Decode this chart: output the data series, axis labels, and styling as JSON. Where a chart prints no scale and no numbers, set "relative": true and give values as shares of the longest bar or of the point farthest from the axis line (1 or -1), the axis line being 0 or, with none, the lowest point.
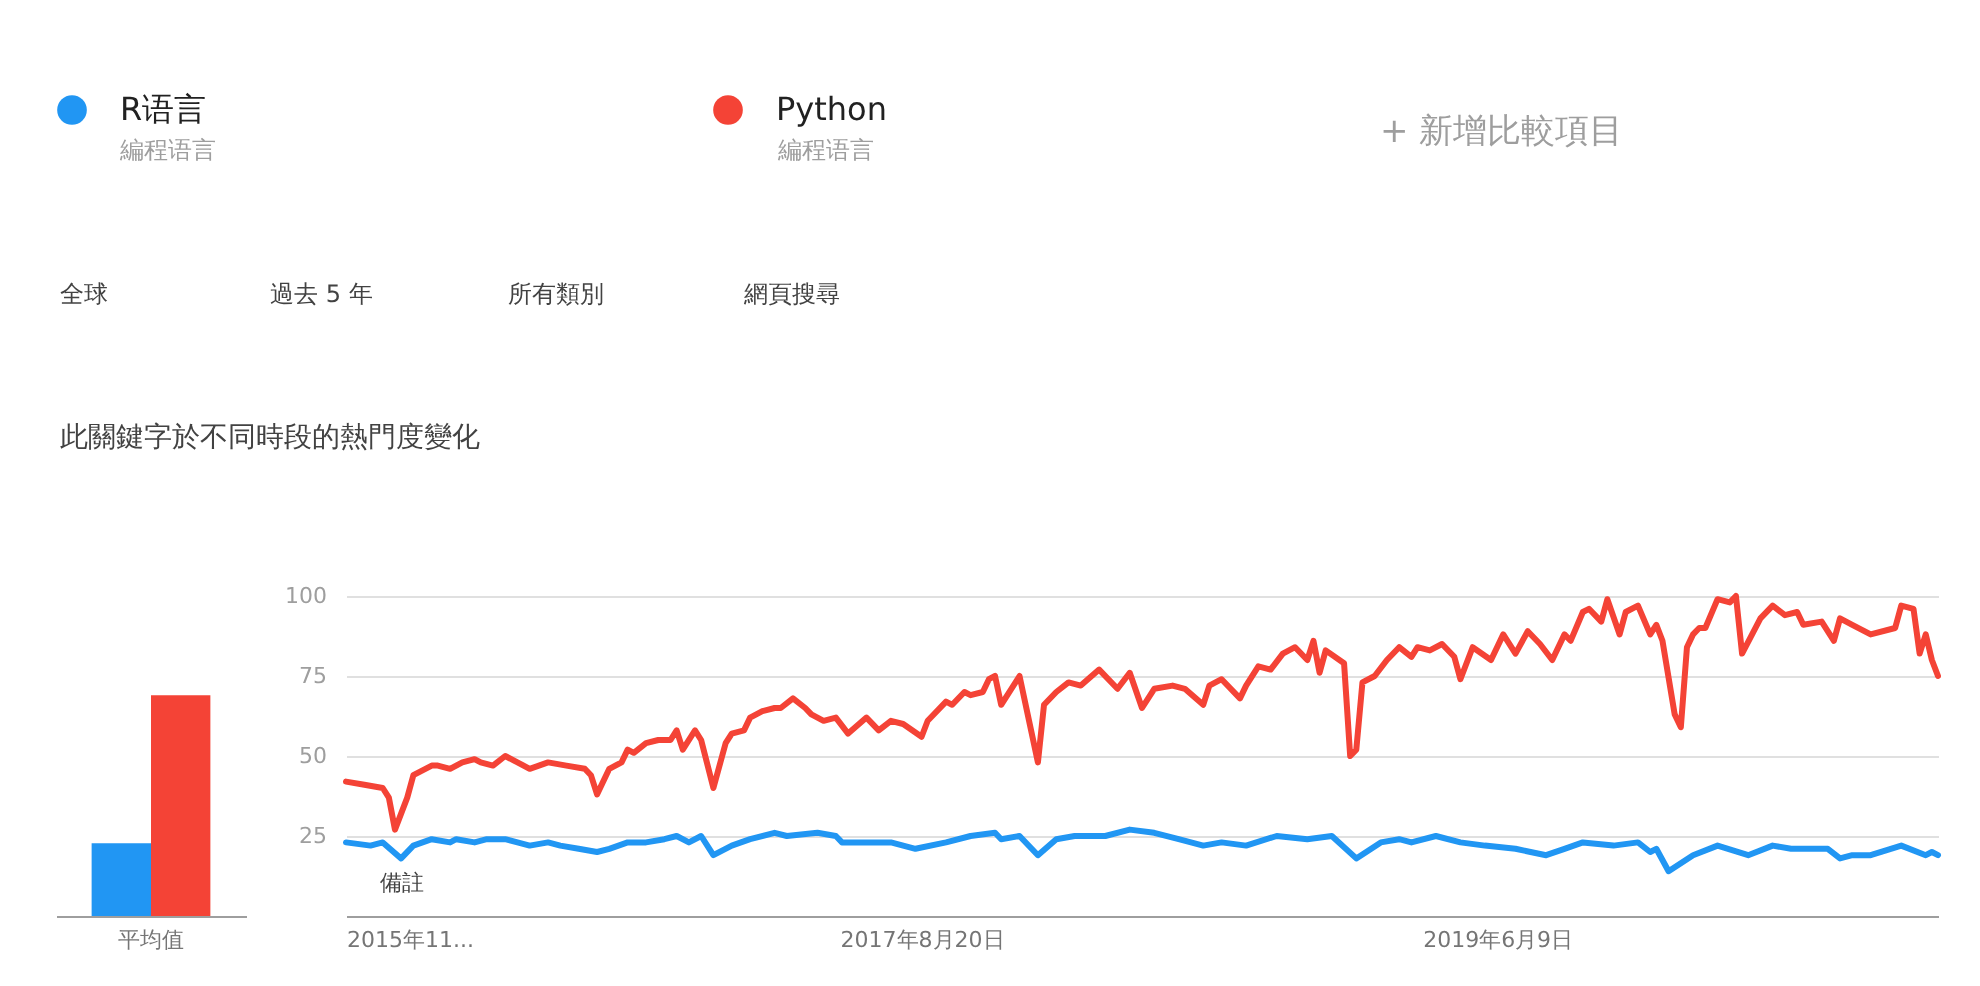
{
  "chart_data": [
    {
      "type": "bar",
      "relative": true,
      "categories": [
        "平均值"
      ],
      "series": [
        {
          "color": "#2196f3",
          "values": [
            0.33
          ]
        },
        {
          "color": "#f44336",
          "values": [
            1
          ]
        }
      ]
    },
    {
      "type": "line",
      "title": "此關鍵字於不同時段的熱門度變化",
      "legend": "top left",
      "grid": "y",
      "marker": "none",
      "line_style": "solid",
      "xlim": [
        "2015-11-01",
        "2020-10-25"
      ],
      "xticks": [
        {
          "value": "2015-11-01",
          "label": "2015年11..."
        },
        {
          "value": "2017-08-20",
          "label": "2017年8月20日"
        },
        {
          "value": "2019-06-09",
          "label": "2019年6月9日"
        }
      ],
      "ylim": [
        0,
        100
      ],
      "yticks": [
        25,
        50,
        75,
        100
      ],
      "annotations": [
        "編程语言",
        "編程语言",
        "+ 新增比較項目",
        "全球",
        "過去 5 年",
        "所有類別",
        "網頁搜尋",
        "備註"
      ],
      "series": [
        {
          "name": "R语言",
          "color": "#2196f3",
          "x": [
            "2015-11-01",
            "2015-11-29",
            "2015-12-13",
            "2016-01-03",
            "2016-01-17",
            "2016-02-07",
            "2016-02-28",
            "2016-03-06",
            "2016-03-27",
            "2016-04-10",
            "2016-05-01",
            "2016-05-15",
            "2016-05-29",
            "2016-06-19",
            "2016-07-03",
            "2016-07-24",
            "2016-08-14",
            "2016-08-28",
            "2016-09-18",
            "2016-10-09",
            "2016-10-30",
            "2016-11-13",
            "2016-11-27",
            "2016-12-11",
            "2016-12-25",
            "2017-01-15",
            "2017-02-05",
            "2017-03-05",
            "2017-03-19",
            "2017-04-23",
            "2017-05-14",
            "2017-05-21",
            "2017-07-16",
            "2017-08-13",
            "2017-09-17",
            "2017-10-15",
            "2017-11-12",
            "2017-11-19",
            "2017-12-10",
            "2017-12-31",
            "2018-01-21",
            "2018-02-11",
            "2018-03-18",
            "2018-04-15",
            "2018-05-13",
            "2018-06-10",
            "2018-07-08",
            "2018-07-29",
            "2018-08-26",
            "2018-09-30",
            "2018-11-04",
            "2018-12-02",
            "2018-12-30",
            "2019-01-27",
            "2019-02-17",
            "2019-03-03",
            "2019-03-31",
            "2019-04-28",
            "2019-05-26",
            "2019-06-30",
            "2019-08-04",
            "2019-08-25",
            "2019-09-15",
            "2019-10-20",
            "2019-11-17",
            "2019-12-01",
            "2019-12-08",
            "2019-12-22",
            "2020-01-19",
            "2020-02-16",
            "2020-03-22",
            "2020-04-19",
            "2020-05-10",
            "2020-06-21",
            "2020-07-05",
            "2020-07-19",
            "2020-08-09",
            "2020-09-13",
            "2020-10-11",
            "2020-10-18",
            "2020-10-25"
          ],
          "values": [
            23,
            22,
            23,
            18,
            22,
            24,
            23,
            24,
            23,
            24,
            24,
            23,
            22,
            23,
            22,
            21,
            20,
            21,
            23,
            23,
            24,
            25,
            23,
            25,
            19,
            22,
            24,
            26,
            25,
            26,
            25,
            23,
            23,
            21,
            23,
            25,
            26,
            24,
            25,
            19,
            24,
            25,
            25,
            27,
            26,
            24,
            22,
            23,
            22,
            25,
            24,
            25,
            18,
            23,
            24,
            23,
            25,
            23,
            22,
            21,
            19,
            21,
            23,
            22,
            23,
            20,
            21,
            14,
            19,
            22,
            19,
            22,
            21,
            21,
            18,
            19,
            19,
            22,
            19,
            20,
            19
          ]
        },
        {
          "name": "Python",
          "color": "#f44336",
          "x": [
            "2015-11-01",
            "2015-11-22",
            "2015-12-13",
            "2015-12-20",
            "2015-12-27",
            "2016-01-10",
            "2016-01-17",
            "2016-02-07",
            "2016-02-14",
            "2016-02-28",
            "2016-03-13",
            "2016-03-27",
            "2016-04-03",
            "2016-04-17",
            "2016-05-01",
            "2016-05-15",
            "2016-05-29",
            "2016-06-19",
            "2016-07-10",
            "2016-07-31",
            "2016-08-07",
            "2016-08-14",
            "2016-08-28",
            "2016-09-11",
            "2016-09-18",
            "2016-09-25",
            "2016-10-09",
            "2016-10-23",
            "2016-11-06",
            "2016-11-13",
            "2016-11-20",
            "2016-12-04",
            "2016-12-11",
            "2016-12-25",
            "2017-01-08",
            "2017-01-15",
            "2017-01-29",
            "2017-02-05",
            "2017-02-19",
            "2017-03-05",
            "2017-03-12",
            "2017-03-26",
            "2017-04-09",
            "2017-04-16",
            "2017-04-30",
            "2017-05-14",
            "2017-05-28",
            "2017-06-18",
            "2017-07-02",
            "2017-07-16",
            "2017-07-30",
            "2017-08-20",
            "2017-08-27",
            "2017-09-17",
            "2017-09-24",
            "2017-10-08",
            "2017-10-15",
            "2017-10-29",
            "2017-11-05",
            "2017-11-12",
            "2017-11-19",
            "2017-12-10",
            "2017-12-17",
            "2017-12-31",
            "2018-01-07",
            "2018-01-21",
            "2018-02-04",
            "2018-02-18",
            "2018-03-11",
            "2018-04-01",
            "2018-04-15",
            "2018-04-29",
            "2018-05-13",
            "2018-06-03",
            "2018-06-17",
            "2018-07-08",
            "2018-07-15",
            "2018-07-29",
            "2018-08-19",
            "2018-08-26",
            "2018-09-09",
            "2018-09-23",
            "2018-10-07",
            "2018-10-21",
            "2018-11-04",
            "2018-11-11",
            "2018-11-18",
            "2018-11-25",
            "2018-12-16",
            "2018-12-23",
            "2018-12-30",
            "2019-01-06",
            "2019-01-20",
            "2019-02-03",
            "2019-02-17",
            "2019-03-03",
            "2019-03-10",
            "2019-03-24",
            "2019-04-07",
            "2019-04-21",
            "2019-04-28",
            "2019-05-12",
            "2019-06-02",
            "2019-06-16",
            "2019-06-30",
            "2019-07-14",
            "2019-07-28",
            "2019-08-11",
            "2019-08-25",
            "2019-09-01",
            "2019-09-15",
            "2019-09-22",
            "2019-10-06",
            "2019-10-13",
            "2019-10-27",
            "2019-11-03",
            "2019-11-17",
            "2019-12-01",
            "2019-12-08",
            "2019-12-15",
            "2019-12-29",
            "2020-01-05",
            "2020-01-12",
            "2020-01-19",
            "2020-01-26",
            "2020-02-02",
            "2020-02-16",
            "2020-03-01",
            "2020-03-08",
            "2020-03-15",
            "2020-04-05",
            "2020-04-19",
            "2020-05-03",
            "2020-05-17",
            "2020-05-24",
            "2020-06-14",
            "2020-06-28",
            "2020-07-05",
            "2020-07-19",
            "2020-08-09",
            "2020-09-06",
            "2020-09-13",
            "2020-09-27",
            "2020-10-04",
            "2020-10-11",
            "2020-10-18",
            "2020-10-25"
          ],
          "values": [
            42,
            41,
            40,
            37,
            27,
            37,
            44,
            47,
            47,
            46,
            48,
            49,
            48,
            47,
            50,
            48,
            46,
            48,
            47,
            46,
            44,
            38,
            46,
            48,
            52,
            51,
            54,
            55,
            55,
            58,
            52,
            58,
            55,
            40,
            54,
            57,
            58,
            62,
            64,
            65,
            65,
            68,
            65,
            63,
            61,
            62,
            57,
            62,
            58,
            61,
            60,
            56,
            61,
            67,
            66,
            70,
            69,
            70,
            74,
            75,
            66,
            75,
            66,
            48,
            66,
            70,
            73,
            72,
            77,
            71,
            76,
            65,
            71,
            72,
            71,
            66,
            72,
            74,
            68,
            72,
            78,
            77,
            82,
            84,
            80,
            86,
            76,
            83,
            79,
            50,
            52,
            73,
            75,
            80,
            84,
            81,
            84,
            83,
            85,
            81,
            74,
            84,
            80,
            88,
            82,
            89,
            85,
            80,
            88,
            86,
            95,
            96,
            92,
            99,
            88,
            95,
            97,
            88,
            91,
            86,
            63,
            59,
            84,
            88,
            90,
            90,
            99,
            98,
            100,
            82,
            93,
            97,
            94,
            95,
            91,
            92,
            86,
            93,
            91,
            88,
            90,
            97,
            96,
            82,
            88,
            80,
            75
          ]
        }
      ]
    }
  ]
}
